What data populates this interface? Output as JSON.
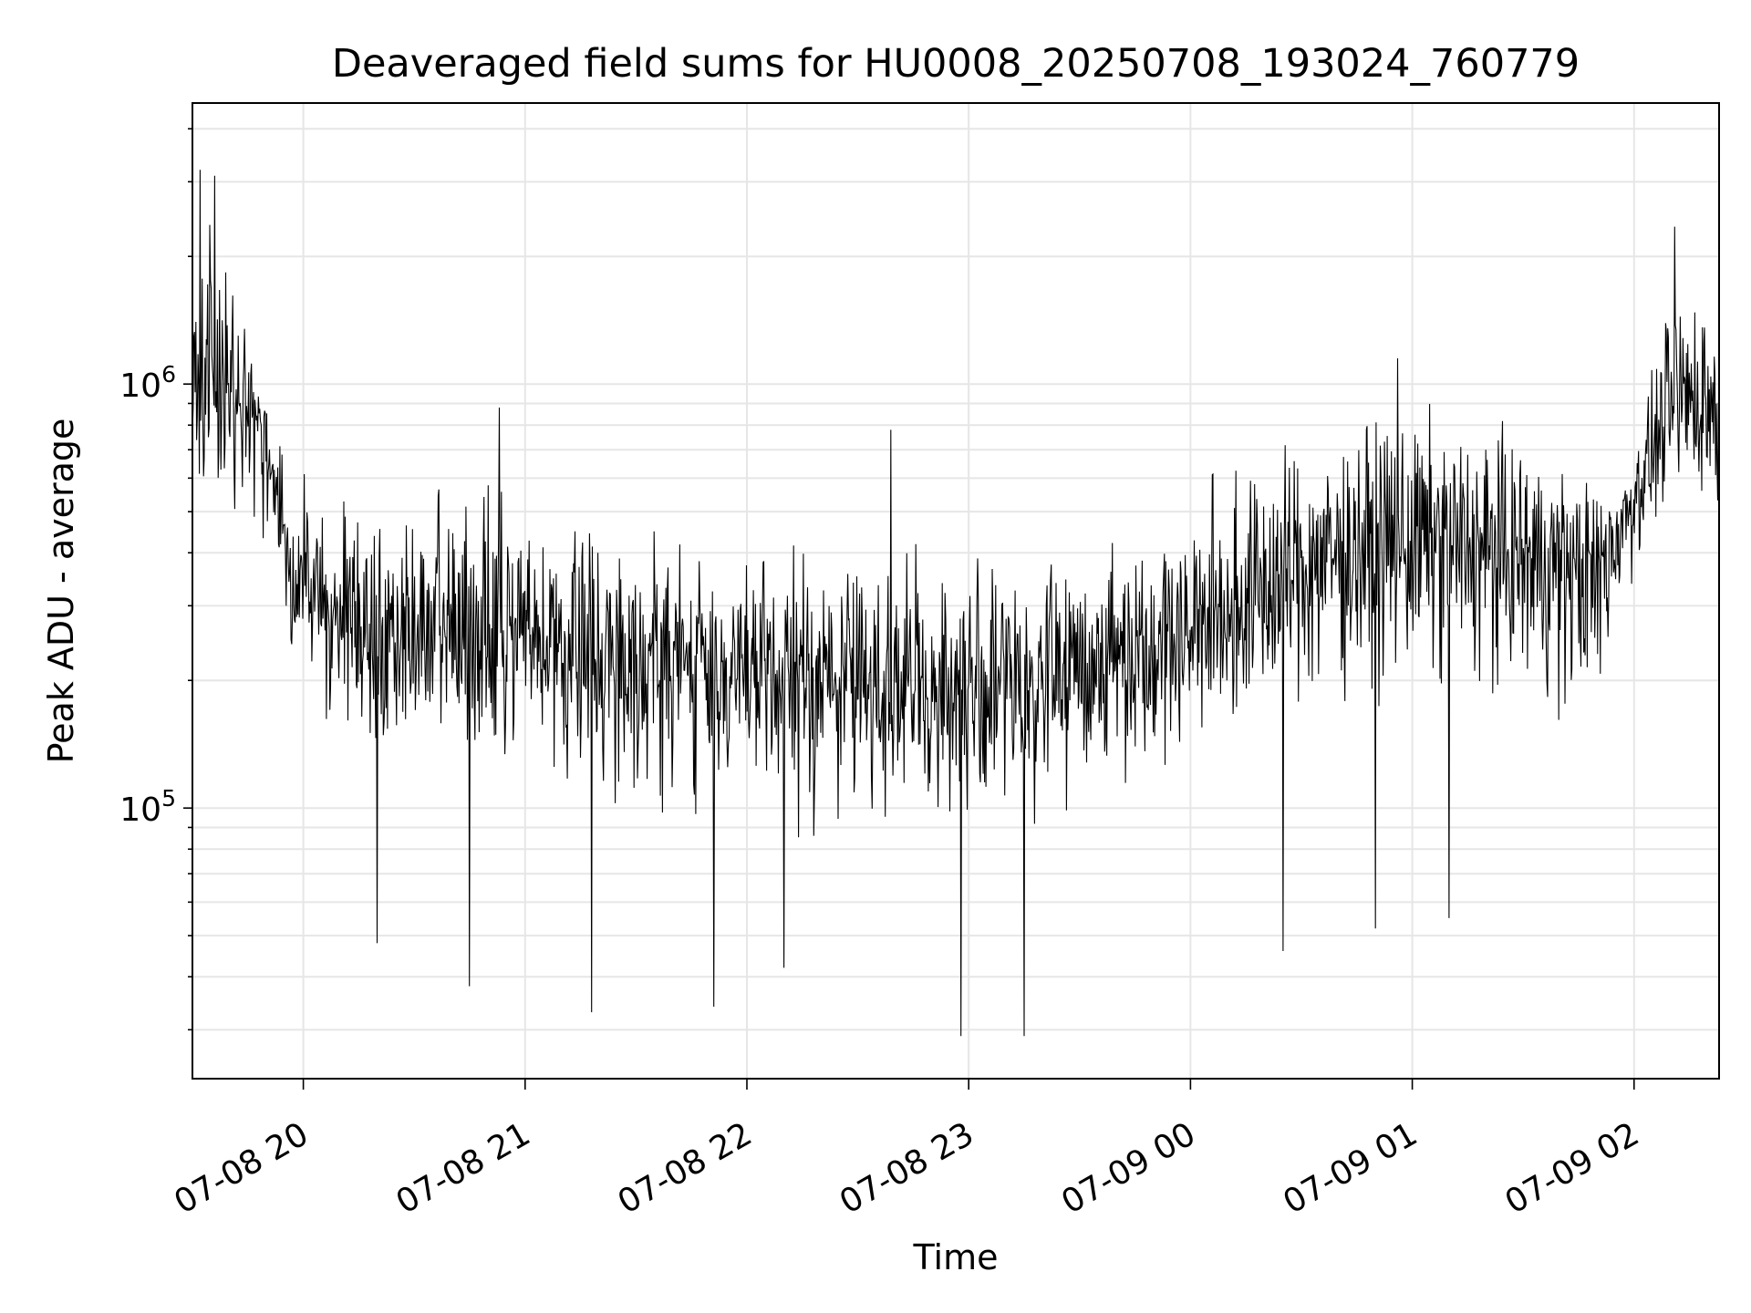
{
  "chart_data": {
    "type": "line",
    "title": "Deaveraged field sums for HU0008_20250708_193024_760779",
    "xlabel": "Time",
    "ylabel": "Peak ADU - average",
    "yscale": "log",
    "ylim": [
      23000,
      4600000
    ],
    "xlim": [
      "2025-07-08 19:30",
      "2025-07-09 02:23"
    ],
    "grid": true,
    "x_ticks": [
      {
        "value": "2025-07-08 20:00",
        "label": "07-08 20"
      },
      {
        "value": "2025-07-08 21:00",
        "label": "07-08 21"
      },
      {
        "value": "2025-07-08 22:00",
        "label": "07-08 22"
      },
      {
        "value": "2025-07-08 23:00",
        "label": "07-08 23"
      },
      {
        "value": "2025-07-09 00:00",
        "label": "07-09 00"
      },
      {
        "value": "2025-07-09 01:00",
        "label": "07-09 01"
      },
      {
        "value": "2025-07-09 02:00",
        "label": "07-09 02"
      }
    ],
    "y_ticks": [
      {
        "value": 100000,
        "base": "10",
        "exp": "5"
      },
      {
        "value": 1000000,
        "base": "10",
        "exp": "6"
      }
    ],
    "series_color": "#000000",
    "series": [
      {
        "x": [
          "2025-07-08 19:30",
          "2025-07-08 19:35",
          "2025-07-08 19:40",
          "2025-07-08 19:45",
          "2025-07-08 19:50",
          "2025-07-08 19:55",
          "2025-07-08 20:00",
          "2025-07-08 20:10",
          "2025-07-08 20:20",
          "2025-07-08 20:30",
          "2025-07-08 20:45",
          "2025-07-08 21:00",
          "2025-07-08 21:15",
          "2025-07-08 21:30",
          "2025-07-08 21:45",
          "2025-07-08 22:00",
          "2025-07-08 22:15",
          "2025-07-08 22:30",
          "2025-07-08 22:45",
          "2025-07-08 23:00",
          "2025-07-08 23:15",
          "2025-07-08 23:30",
          "2025-07-08 23:45",
          "2025-07-09 00:00",
          "2025-07-09 00:15",
          "2025-07-09 00:30",
          "2025-07-09 00:45",
          "2025-07-09 01:00",
          "2025-07-09 01:15",
          "2025-07-09 01:30",
          "2025-07-09 01:40",
          "2025-07-09 01:50",
          "2025-07-09 02:00",
          "2025-07-09 02:05",
          "2025-07-09 02:10",
          "2025-07-09 02:15",
          "2025-07-09 02:20",
          "2025-07-09 02:23"
        ],
        "center": [
          900000,
          1000000,
          950000,
          850000,
          700000,
          450000,
          330000,
          280000,
          260000,
          250000,
          260000,
          250000,
          240000,
          230000,
          220000,
          205000,
          200000,
          200000,
          190000,
          190000,
          200000,
          215000,
          240000,
          265000,
          310000,
          370000,
          410000,
          430000,
          420000,
          400000,
          380000,
          360000,
          560000,
          700000,
          850000,
          900000,
          880000,
          860000
        ],
        "high": [
          2000000,
          3100000,
          1900000,
          1500000,
          950000,
          700000,
          650000,
          560000,
          600000,
          580000,
          620000,
          550000,
          500000,
          480000,
          470000,
          420000,
          430000,
          470000,
          420000,
          410000,
          430000,
          460000,
          520000,
          560000,
          700000,
          800000,
          900000,
          920000,
          850000,
          800000,
          720000,
          620000,
          700000,
          1100000,
          1800000,
          2300000,
          2000000,
          1400000
        ],
        "low": [
          550000,
          420000,
          450000,
          420000,
          360000,
          250000,
          160000,
          140000,
          120000,
          120000,
          115000,
          110000,
          105000,
          100000,
          95000,
          90000,
          85000,
          90000,
          85000,
          85000,
          90000,
          100000,
          110000,
          130000,
          140000,
          160000,
          170000,
          180000,
          170000,
          160000,
          150000,
          150000,
          330000,
          450000,
          500000,
          520000,
          500000,
          480000
        ],
        "spikes_up": [
          {
            "x": "2025-07-08 19:32",
            "y": 3200000
          },
          {
            "x": "2025-07-08 19:36",
            "y": 3100000
          },
          {
            "x": "2025-07-08 20:53",
            "y": 880000
          },
          {
            "x": "2025-07-08 22:39",
            "y": 780000
          },
          {
            "x": "2025-07-09 00:56",
            "y": 1150000
          },
          {
            "x": "2025-07-09 02:11",
            "y": 2350000
          }
        ],
        "spikes_down": [
          {
            "x": "2025-07-08 20:20",
            "y": 48000
          },
          {
            "x": "2025-07-08 20:45",
            "y": 38000
          },
          {
            "x": "2025-07-08 21:18",
            "y": 33000
          },
          {
            "x": "2025-07-08 21:51",
            "y": 34000
          },
          {
            "x": "2025-07-08 22:10",
            "y": 42000
          },
          {
            "x": "2025-07-08 22:58",
            "y": 29000
          },
          {
            "x": "2025-07-08 23:15",
            "y": 29000
          },
          {
            "x": "2025-07-09 00:25",
            "y": 46000
          },
          {
            "x": "2025-07-09 00:50",
            "y": 52000
          },
          {
            "x": "2025-07-09 01:10",
            "y": 55000
          }
        ]
      }
    ]
  }
}
